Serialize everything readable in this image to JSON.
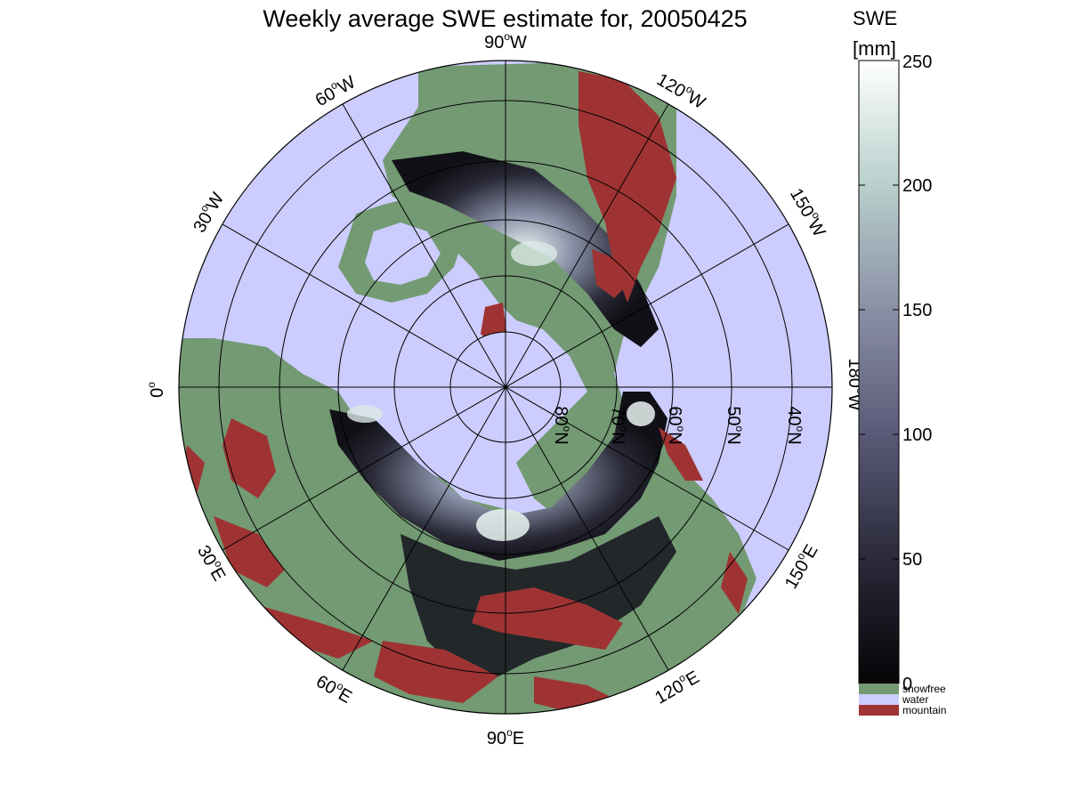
{
  "title": "Weekly average SWE estimate for, 20050425",
  "colorbar": {
    "title_line1": "SWE",
    "title_line2": "[mm]",
    "ticks": [
      "0",
      "50",
      "100",
      "150",
      "200",
      "250"
    ],
    "range": [
      0,
      250
    ],
    "legend": [
      {
        "label": "snowfree",
        "color": "#739a73"
      },
      {
        "label": "water",
        "color": "#ccccff"
      },
      {
        "label": "mountain",
        "color": "#9f3333"
      }
    ]
  },
  "map": {
    "projection": "north polar stereographic",
    "longitude_labels": [
      {
        "text": "90",
        "suffix": "W"
      },
      {
        "text": "60",
        "suffix": "W"
      },
      {
        "text": "120",
        "suffix": "W"
      },
      {
        "text": "30",
        "suffix": "W"
      },
      {
        "text": "150",
        "suffix": "W"
      },
      {
        "text": "0",
        "suffix": ""
      },
      {
        "text": "180",
        "suffix": "W"
      },
      {
        "text": "30",
        "suffix": "E"
      },
      {
        "text": "150",
        "suffix": "E"
      },
      {
        "text": "60",
        "suffix": "E"
      },
      {
        "text": "120",
        "suffix": "E"
      },
      {
        "text": "90",
        "suffix": "E"
      }
    ],
    "latitude_labels": [
      "80",
      "70",
      "60",
      "50",
      "40"
    ],
    "latitude_suffix": "N",
    "colors": {
      "water": "#ccccff",
      "snowfree": "#739a73",
      "mountain": "#9f3333",
      "swe_low": "#0a0a10",
      "swe_mid": "#6b6b85",
      "swe_high": "#ffffff"
    }
  }
}
